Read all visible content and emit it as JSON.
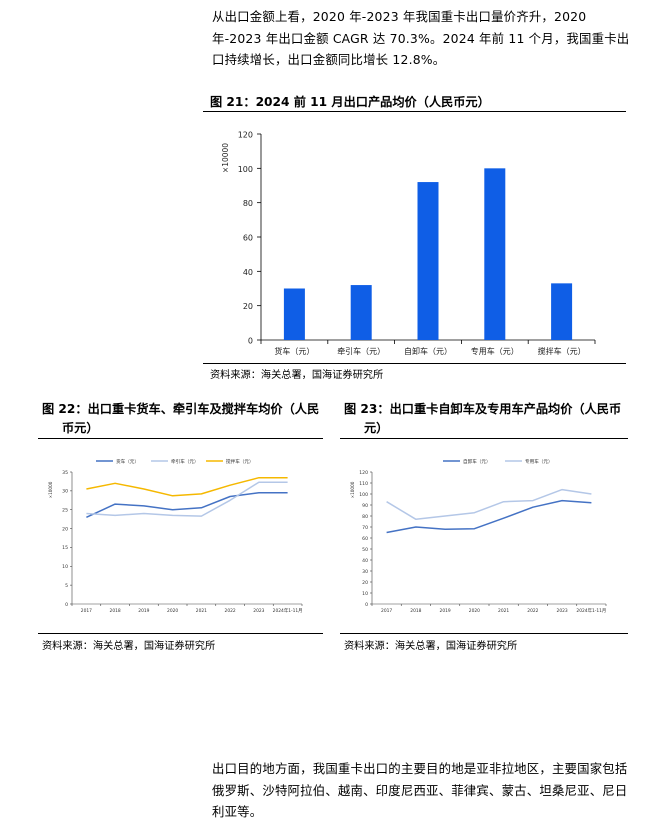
{
  "intro_text": "从出口金额上看，2020 年-2023 年我国重卡出口量价齐升，2020 年-2023 年出口金额 CAGR 达 70.3%。2024 年前 11 个月，我国重卡出口持续增长，出口金额同比增长 12.8%。",
  "fig21": {
    "title": "图 21：2024 前 11 月出口产品均价（人民币元）",
    "source": "资料来源：海关总署，国海证券研究所"
  },
  "fig22": {
    "title_line1": "图 22：出口重卡货车、牵引车及搅拌车均价（人民",
    "title_line2": "币元）",
    "source": "资料来源：海关总署，国海证券研究所"
  },
  "fig23": {
    "title_line1": "图 23：出口重卡自卸车及专用车产品均价（人民币",
    "title_line2": "元）",
    "source": "资料来源：海关总署，国海证券研究所"
  },
  "outro_text": "出口目的地方面，我国重卡出口的主要目的地是亚非拉地区，主要国家包括俄罗斯、沙特阿拉伯、越南、印度尼西亚、菲律宾、蒙古、坦桑尼亚、尼日利亚等。",
  "chart_data": [
    {
      "type": "bar",
      "multiplier_label": "×10000",
      "categories": [
        "货车（元）",
        "牵引车（元）",
        "自卸车（元）",
        "专用车（元）",
        "搅拌车（元）"
      ],
      "values": [
        30,
        32,
        92,
        100,
        33
      ],
      "ylim": [
        0,
        120
      ],
      "yticks": [
        0,
        20,
        40,
        60,
        80,
        100,
        120
      ],
      "color": "#0f5ee6"
    },
    {
      "type": "line",
      "multiplier_label": "×10000",
      "x": [
        "2017",
        "2018",
        "2019",
        "2020",
        "2021",
        "2022",
        "2023",
        "2024年1-11月"
      ],
      "series": [
        {
          "name": "货车（元）",
          "color": "#4472c4",
          "values": [
            23,
            26.5,
            26,
            25,
            25.5,
            28.5,
            29.5,
            29.5
          ]
        },
        {
          "name": "牵引车（元）",
          "color": "#b4c7e7",
          "values": [
            24,
            23.5,
            24,
            23.5,
            23.3,
            27.5,
            32.3,
            32.3
          ]
        },
        {
          "name": "搅拌车（元）",
          "color": "#f5b800",
          "values": [
            30.5,
            32,
            30.5,
            28.7,
            29.2,
            31.5,
            33.5,
            33.5
          ]
        }
      ],
      "ylim": [
        0,
        35
      ],
      "yticks": [
        0,
        5,
        10,
        15,
        20,
        25,
        30,
        35
      ],
      "legend": "top"
    },
    {
      "type": "line",
      "multiplier_label": "×10000",
      "x": [
        "2017",
        "2018",
        "2019",
        "2020",
        "2021",
        "2022",
        "2023",
        "2024年1-11月"
      ],
      "series": [
        {
          "name": "自卸车（元）",
          "color": "#4472c4",
          "values": [
            65,
            70,
            68,
            68.5,
            78,
            88,
            94,
            92
          ]
        },
        {
          "name": "专用车（元）",
          "color": "#b4c7e7",
          "values": [
            93,
            77,
            80,
            83,
            93,
            94,
            104,
            100
          ]
        }
      ],
      "ylim": [
        0,
        120
      ],
      "yticks": [
        0,
        10,
        20,
        30,
        40,
        50,
        60,
        70,
        80,
        90,
        100,
        110,
        120
      ],
      "legend": "top"
    }
  ]
}
